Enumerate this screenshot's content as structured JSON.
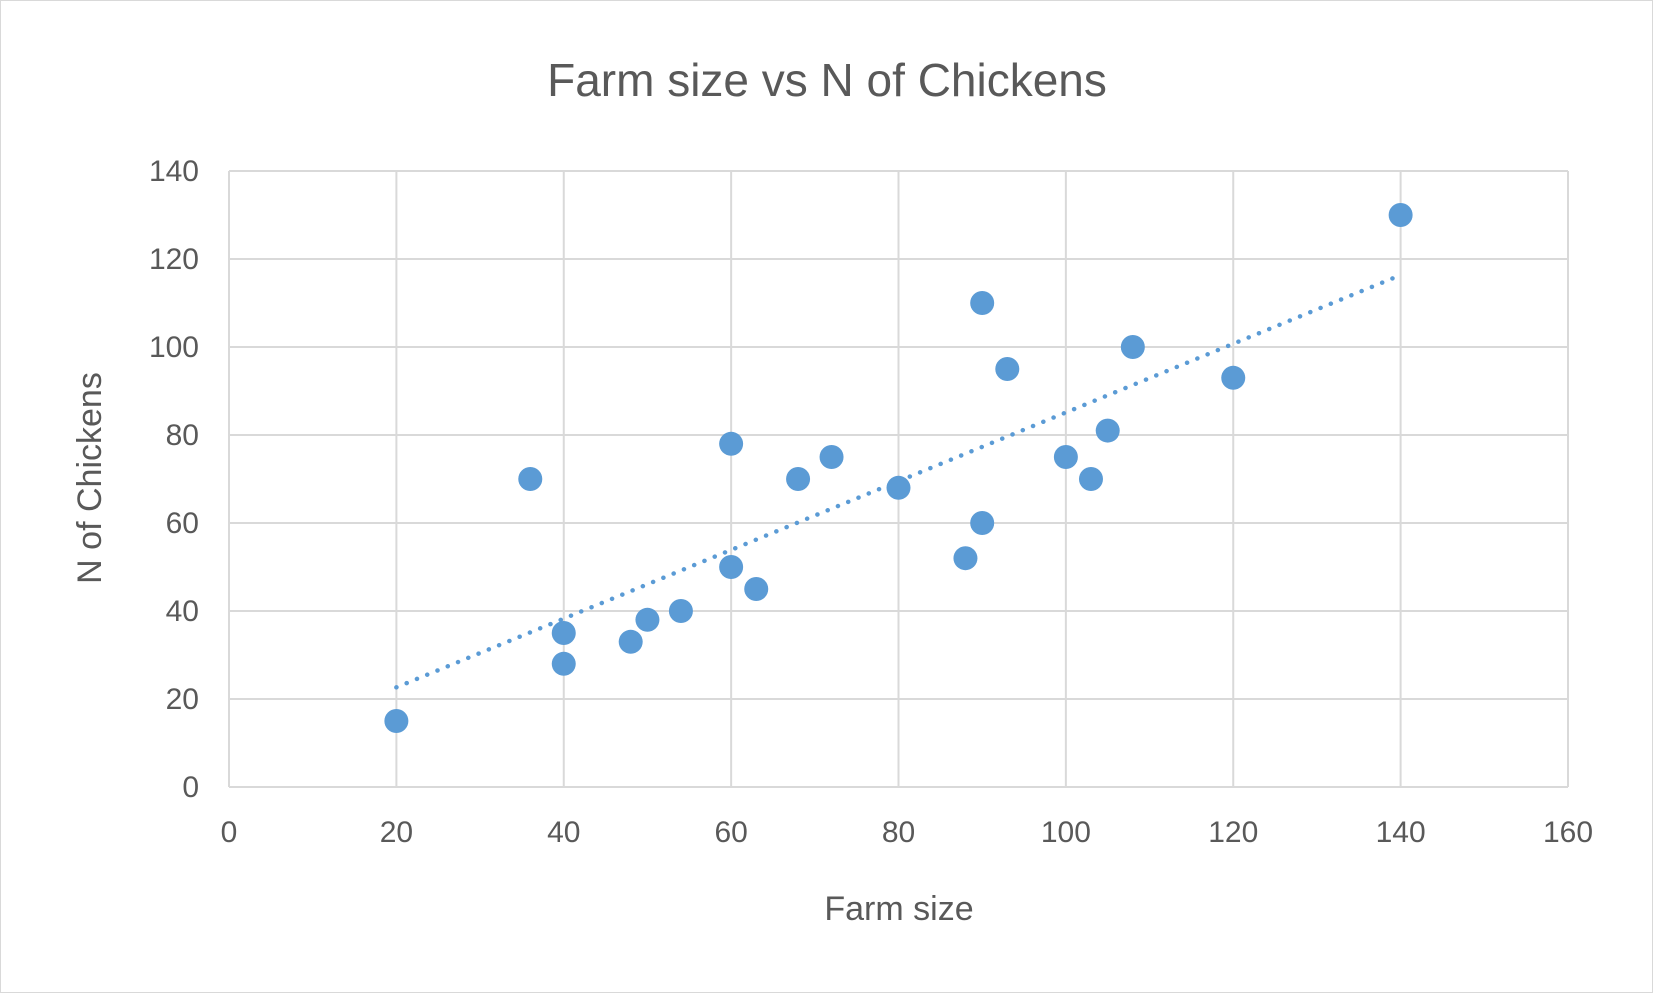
{
  "chart_data": {
    "type": "scatter",
    "title": "Farm size vs N of Chickens",
    "xlabel": "Farm size",
    "ylabel": "N of Chickens",
    "xlim": [
      0,
      160
    ],
    "ylim": [
      0,
      140
    ],
    "xticks": [
      0,
      20,
      40,
      60,
      80,
      100,
      120,
      140,
      160
    ],
    "yticks": [
      0,
      20,
      40,
      60,
      80,
      100,
      120,
      140
    ],
    "grid": true,
    "legend": "none",
    "trendline": {
      "type": "linear",
      "style": "dotted",
      "x_range": [
        20,
        140
      ]
    },
    "series": [
      {
        "color": "#5b9bd5",
        "points": [
          {
            "x": 20,
            "y": 15
          },
          {
            "x": 36,
            "y": 70
          },
          {
            "x": 40,
            "y": 35
          },
          {
            "x": 40,
            "y": 28
          },
          {
            "x": 48,
            "y": 33
          },
          {
            "x": 50,
            "y": 38
          },
          {
            "x": 54,
            "y": 40
          },
          {
            "x": 60,
            "y": 78
          },
          {
            "x": 60,
            "y": 50
          },
          {
            "x": 63,
            "y": 45
          },
          {
            "x": 68,
            "y": 70
          },
          {
            "x": 72,
            "y": 75
          },
          {
            "x": 80,
            "y": 68
          },
          {
            "x": 88,
            "y": 52
          },
          {
            "x": 90,
            "y": 110
          },
          {
            "x": 90,
            "y": 60
          },
          {
            "x": 93,
            "y": 95
          },
          {
            "x": 100,
            "y": 75
          },
          {
            "x": 103,
            "y": 70
          },
          {
            "x": 105,
            "y": 81
          },
          {
            "x": 108,
            "y": 100
          },
          {
            "x": 120,
            "y": 93
          },
          {
            "x": 140,
            "y": 130
          }
        ]
      }
    ]
  }
}
